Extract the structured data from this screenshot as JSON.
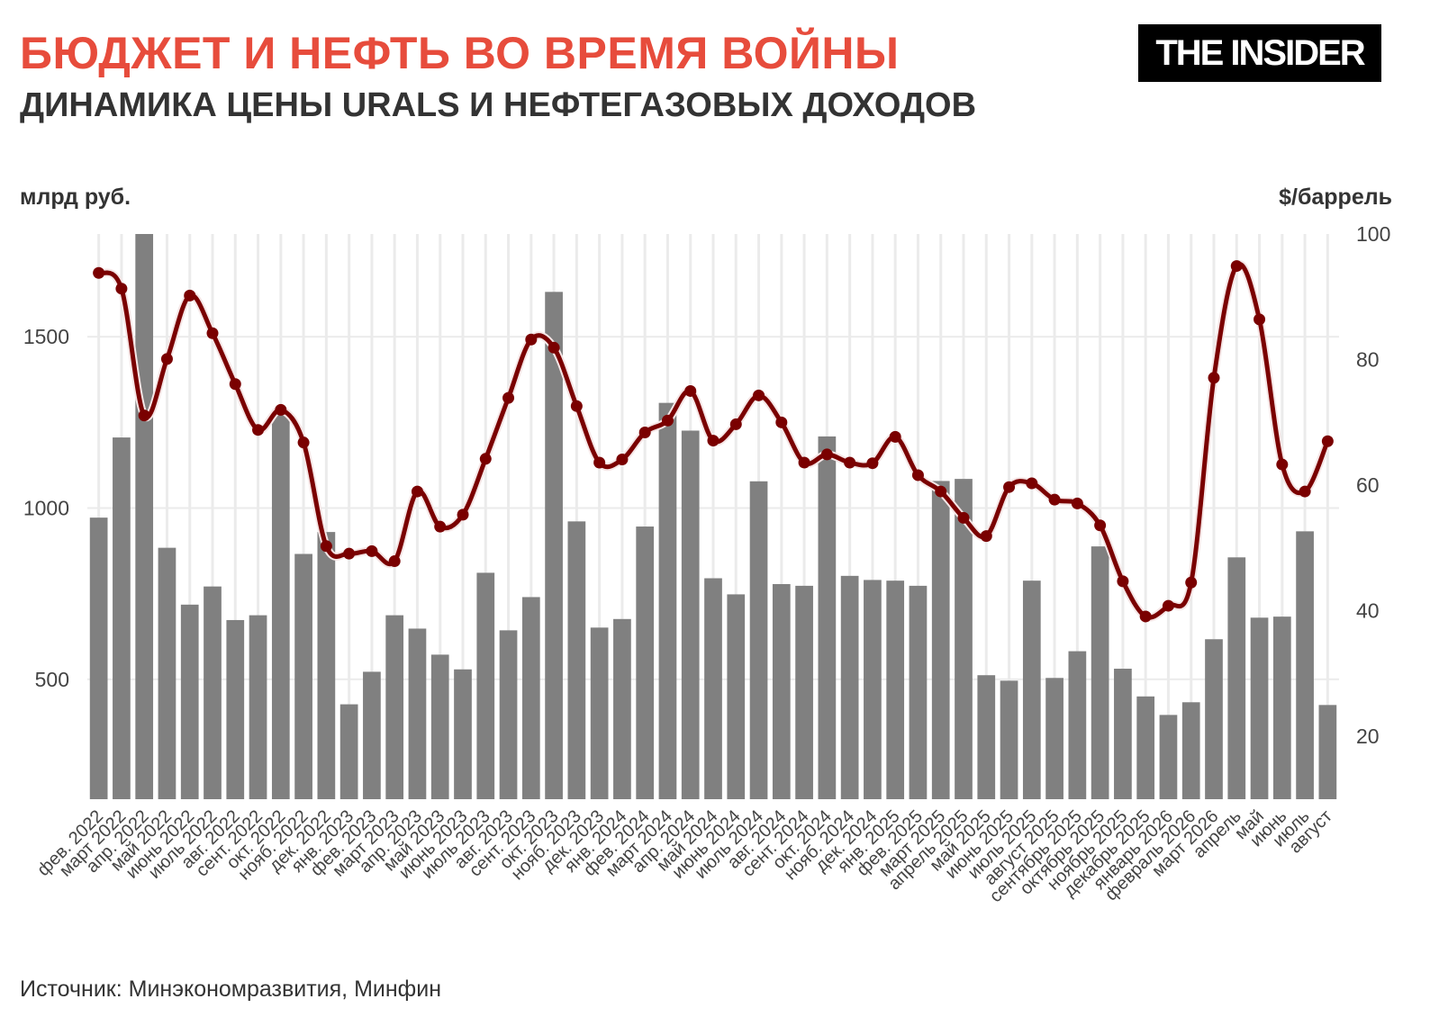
{
  "header": {
    "title": "БЮДЖЕТ И НЕФТЬ ВО ВРЕМЯ ВОЙНЫ",
    "subtitle": "ДИНАМИКА ЦЕНЫ URALS И НЕФТЕГАЗОВЫХ ДОХОДОВ",
    "logo_text": "THE INSIDER"
  },
  "footer": {
    "source": "Источник: Минэкономразвития, Минфин"
  },
  "colors": {
    "title": "#e74c3c",
    "bar": "#808080",
    "line": "#7a0000",
    "line_halo": "#f5e6e6",
    "grid": "#ebebeb"
  },
  "chart_data": {
    "type": "bar+line",
    "left_axis_label": "млрд руб.",
    "right_axis_label": "$/баррель",
    "left_ylim": [
      150,
      1800
    ],
    "left_ticks": [
      500,
      1000,
      1500
    ],
    "right_ylim": [
      10,
      100
    ],
    "right_ticks": [
      20,
      40,
      60,
      80,
      100
    ],
    "grid": true,
    "categories": [
      "фев. 2022",
      "март 2022",
      "апр. 2022",
      "май 2022",
      "июнь 2022",
      "июль 2022",
      "авг. 2022",
      "сент. 2022",
      "окт. 2022",
      "нояб. 2022",
      "дек. 2022",
      "янв. 2023",
      "фев. 2023",
      "март 2023",
      "апр. 2023",
      "май 2023",
      "июнь 2023",
      "июль 2023",
      "авг. 2023",
      "сент. 2023",
      "окт. 2023",
      "нояб. 2023",
      "дек. 2023",
      "янв. 2024",
      "фев. 2024",
      "март 2024",
      "апр. 2024",
      "май 2024",
      "июнь 2024",
      "июль 2024",
      "авг. 2024",
      "сент. 2024",
      "окт. 2024",
      "нояб. 2024",
      "дек. 2024",
      "янв. 2025",
      "фев. 2025",
      "март 2025",
      "апрель 2025",
      "май 2025",
      "июнь 2025",
      "июль 2025",
      "август 2025",
      "сентябрь 2025",
      "октябрь 2025",
      "ноябрь 2025",
      "декабрь 2025",
      "январь 2026",
      "февраль 2026",
      "март 2026",
      "апрель",
      "май",
      "июнь",
      "июль",
      "август"
    ],
    "series": [
      {
        "type": "bar",
        "axis": "left",
        "values": [
          972,
          1206,
          1800,
          884,
          718,
          771,
          673,
          687,
          1280,
          866,
          930,
          427,
          522,
          687,
          648,
          572,
          529,
          811,
          643,
          740,
          1631,
          961,
          651,
          676,
          946,
          1307,
          1226,
          795,
          748,
          1078,
          778,
          773,
          1209,
          802,
          790,
          788,
          773,
          1079,
          1085,
          512,
          496,
          788,
          504,
          582,
          888,
          531,
          450,
          396,
          433,
          617,
          856,
          680,
          683,
          932,
          425
        ]
      },
      {
        "type": "line",
        "axis": "right",
        "values": [
          93.8,
          91.3,
          71.1,
          80.1,
          90.2,
          84.2,
          76.1,
          68.8,
          72.0,
          66.8,
          50.3,
          49.1,
          49.5,
          47.9,
          59.0,
          53.4,
          55.3,
          64.2,
          73.9,
          83.2,
          81.9,
          72.6,
          63.6,
          64.1,
          68.4,
          70.3,
          75.0,
          67.1,
          69.7,
          74.3,
          70.0,
          63.6,
          64.9,
          63.6,
          63.5,
          67.7,
          61.6,
          59.0,
          54.8,
          51.9,
          59.7,
          60.3,
          57.7,
          57.1,
          53.6,
          44.7,
          39.1,
          40.8,
          44.5,
          77.1,
          94.9,
          86.4,
          63.3,
          59.0,
          67.0
        ]
      }
    ]
  }
}
